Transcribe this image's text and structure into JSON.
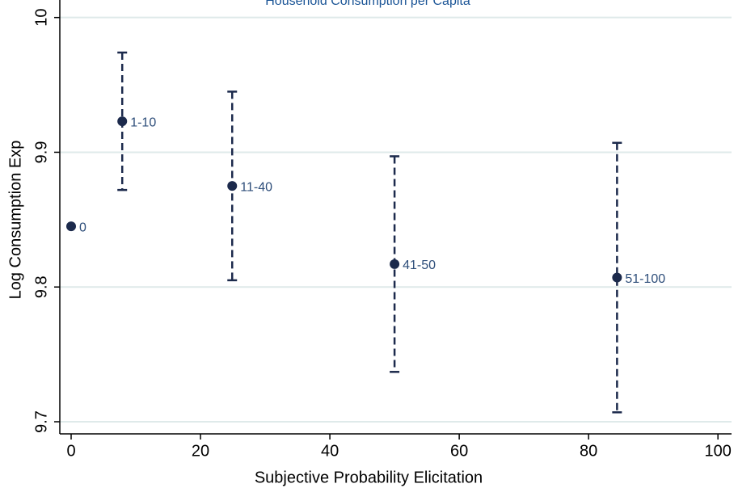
{
  "chart_data": {
    "type": "errorbar",
    "title": "Household Consumption per Capita",
    "x_label": "Subjective Probability Elicitation",
    "y_label": "Log Consumption Exp",
    "x": [
      0,
      7.9,
      24.9,
      50,
      84.4
    ],
    "values": [
      9.845,
      9.923,
      9.875,
      9.817,
      9.807
    ],
    "errors": [
      null,
      0.051,
      0.07,
      0.08,
      0.1
    ],
    "point_labels": [
      "0",
      "1-10",
      "11-40",
      "41-50",
      "51-100"
    ],
    "color": "#1c2a4c",
    "label_color": "#2e4e7a",
    "xlim": [
      -1.75,
      102.1
    ],
    "ylim": [
      9.691,
      10.013
    ],
    "xticks": [
      0,
      20,
      40,
      60,
      80,
      100
    ],
    "yticks": [
      9.7,
      9.8,
      9.9,
      10
    ],
    "grid": true
  }
}
